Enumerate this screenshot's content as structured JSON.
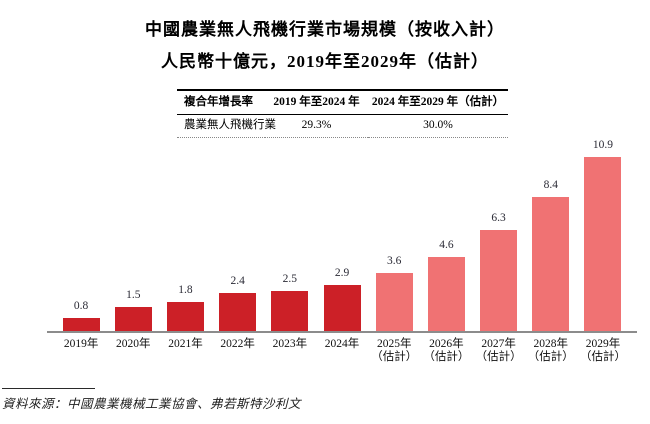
{
  "chart_data": {
    "type": "bar",
    "title": "中國農業無人飛機行業市場規模（按收入計）",
    "subtitle": "人民幣十億元，2019年至2029年（估計）",
    "categories": [
      "2019年",
      "2020年",
      "2021年",
      "2022年",
      "2023年",
      "2024年",
      "2025年",
      "2026年",
      "2027年",
      "2028年",
      "2029年"
    ],
    "estimated": [
      false,
      false,
      false,
      false,
      false,
      false,
      true,
      true,
      true,
      true,
      true
    ],
    "estimate_suffix": "（估計）",
    "values": [
      0.8,
      1.5,
      1.8,
      2.4,
      2.5,
      2.9,
      3.6,
      4.6,
      6.3,
      8.4,
      10.9
    ],
    "ylim": [
      0,
      12.5
    ],
    "grid": false,
    "legend": "none",
    "bar_color_actual": "#cc2027",
    "bar_color_estimated": "#f07273",
    "baseline_color": "#8c8c8c"
  },
  "cagr_table": {
    "headers": [
      "複合年增長率",
      "2019 年至2024 年",
      "2024 年至2029 年（估計）"
    ],
    "rows": [
      [
        "農業無人飛機行業",
        "29.3%",
        "30.0%"
      ]
    ]
  },
  "source": {
    "text": "資料來源：中國農業機械工業協會、弗若斯特沙利文"
  }
}
